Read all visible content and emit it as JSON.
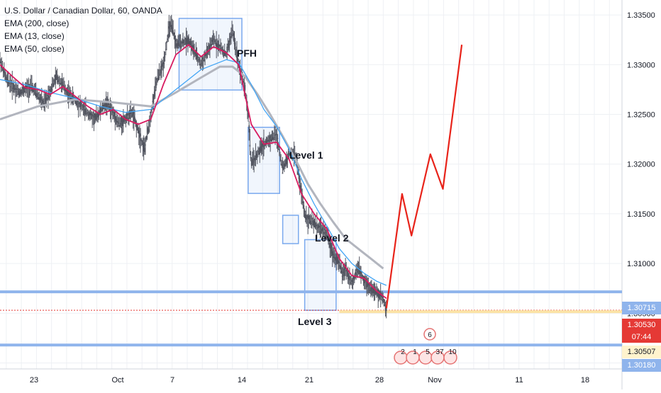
{
  "legend": {
    "symbol": "U.S. Dollar / Canadian Dollar, 60, OANDA",
    "ema200": "EMA (200, close)",
    "ema13": "EMA (13, close)",
    "ema50": "EMA (50, close)"
  },
  "annotations": {
    "pfh": "PFH",
    "level1": "Level 1",
    "level2": "Level 2",
    "level3": "Level 3"
  },
  "price_tags": {
    "support_top": "1.30715",
    "last": "1.30530",
    "countdown": "07:44",
    "ema_value": "1.30507",
    "support_bottom": "1.30180"
  },
  "event_markers": {
    "top": "6",
    "row": [
      "2",
      "1",
      "5",
      "37",
      "10"
    ]
  },
  "colors": {
    "candles": "#50535e",
    "ema13": "#d81b60",
    "ema50": "#42a5f5",
    "ema200": "#b2b5be",
    "zones": "#7aa9ee",
    "support": "#8fb4ec",
    "projection": "#e8231a",
    "last_price": "#e53935",
    "ema_tag_bg": "#fff3cd"
  },
  "chart_data": {
    "type": "line",
    "title": "U.S. Dollar / Canadian Dollar, 60, OANDA",
    "x_tick_labels": [
      "23",
      "Oct",
      "7",
      "14",
      "21",
      "28",
      "Nov",
      "11",
      "18"
    ],
    "y_tick_labels": [
      "1.30000",
      "1.30500",
      "1.31000",
      "1.31500",
      "1.32000",
      "1.32500",
      "1.33000",
      "1.33500"
    ],
    "y_range": [
      1.2994,
      1.3365
    ],
    "x_range": [
      -25,
      74
    ],
    "series": [
      {
        "name": "Price",
        "x": [
          -25,
          -24,
          -22,
          -20,
          -18,
          -16,
          -14,
          -12,
          -10,
          -8,
          -6,
          -4,
          -2,
          -1,
          0,
          1,
          2,
          2.5,
          3,
          5,
          7,
          9,
          11,
          12,
          13,
          14,
          14.5,
          15,
          17,
          19,
          20,
          21,
          22,
          23,
          23.5,
          24,
          25,
          27,
          28,
          29,
          29.5,
          30,
          31,
          32,
          33,
          34,
          35,
          36,
          36.5
        ],
        "y": [
          1.3305,
          1.3285,
          1.3272,
          1.3278,
          1.326,
          1.3288,
          1.327,
          1.3258,
          1.3245,
          1.3262,
          1.324,
          1.3252,
          1.3215,
          1.325,
          1.3285,
          1.33,
          1.334,
          1.3335,
          1.332,
          1.3325,
          1.33,
          1.3325,
          1.331,
          1.3335,
          1.33,
          1.3275,
          1.325,
          1.32,
          1.322,
          1.323,
          1.3195,
          1.321,
          1.321,
          1.317,
          1.315,
          1.3145,
          1.314,
          1.313,
          1.311,
          1.31,
          1.309,
          1.3095,
          1.308,
          1.3095,
          1.3083,
          1.3075,
          1.307,
          1.3065,
          1.3053
        ]
      },
      {
        "name": "EMA (13, close)",
        "x": [
          -25,
          -23,
          -21,
          -19,
          -17,
          -15,
          -13,
          -11,
          -9,
          -7,
          -5,
          -3,
          -1,
          1,
          3,
          5,
          7,
          9,
          11,
          13,
          15,
          17,
          19,
          21,
          23,
          25,
          27,
          29,
          31,
          33,
          35,
          36.5
        ],
        "y": [
          1.33,
          1.3288,
          1.3277,
          1.3275,
          1.327,
          1.3278,
          1.3268,
          1.3258,
          1.325,
          1.3255,
          1.3245,
          1.324,
          1.3245,
          1.328,
          1.331,
          1.332,
          1.3308,
          1.3318,
          1.3312,
          1.33,
          1.324,
          1.322,
          1.3222,
          1.3205,
          1.317,
          1.315,
          1.3135,
          1.3105,
          1.3088,
          1.3085,
          1.3072,
          1.3065
        ]
      },
      {
        "name": "EMA (50, close)",
        "x": [
          -25,
          -21,
          -17,
          -13,
          -9,
          -5,
          -1,
          3,
          7,
          11,
          13,
          15,
          17,
          19,
          21,
          23,
          25,
          27,
          29,
          31,
          33,
          35,
          36.5
        ],
        "y": [
          1.3285,
          1.328,
          1.3272,
          1.3266,
          1.3258,
          1.3252,
          1.3255,
          1.3275,
          1.3295,
          1.3305,
          1.3302,
          1.328,
          1.3255,
          1.3238,
          1.3215,
          1.3185,
          1.316,
          1.3138,
          1.3115,
          1.31,
          1.309,
          1.3082,
          1.3078
        ]
      },
      {
        "name": "EMA (200, close)",
        "x": [
          -25,
          -19,
          -13,
          -7,
          -1,
          3,
          7,
          10,
          12,
          14,
          16,
          18,
          20,
          22,
          24,
          26,
          28,
          30,
          32,
          34,
          36
        ],
        "y": [
          1.3245,
          1.3258,
          1.3265,
          1.3262,
          1.3258,
          1.3272,
          1.3287,
          1.3298,
          1.3298,
          1.3288,
          1.327,
          1.325,
          1.3228,
          1.3205,
          1.318,
          1.316,
          1.3142,
          1.3125,
          1.3115,
          1.3105,
          1.3095
        ]
      },
      {
        "name": "Projection",
        "x": [
          36.5,
          39,
          40.5,
          43.5,
          45.5,
          48.5
        ],
        "y": [
          1.3055,
          1.317,
          1.3128,
          1.321,
          1.3175,
          1.332
        ]
      }
    ],
    "zones": [
      {
        "label": "PFH",
        "x": [
          3.5,
          13.5
        ],
        "y": [
          1.32745,
          1.33465
        ]
      },
      {
        "label": "Level 1",
        "x": [
          14.5,
          19.5
        ],
        "y": [
          1.31705,
          1.3237
        ]
      },
      {
        "label": "Level 2",
        "x": [
          20,
          22.5
        ],
        "y": [
          1.312,
          1.31485
        ]
      },
      {
        "label": "Level 3",
        "x": [
          23.5,
          28.5
        ],
        "y": [
          1.3053,
          1.3124
        ]
      }
    ],
    "horizontal_lines": [
      1.30715,
      1.3018,
      1.3053
    ],
    "grid": true,
    "legend_position": "top-left"
  }
}
